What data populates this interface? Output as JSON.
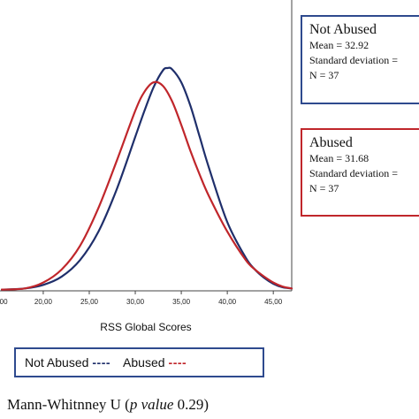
{
  "chart_data": {
    "type": "line",
    "title": "",
    "xlabel": "RSS Global Scores",
    "ylabel": "",
    "xlim": [
      15,
      47
    ],
    "grid": false,
    "x_ticks": [
      "20,00",
      "25,00",
      "30,00",
      "35,00",
      "40,00",
      "45,00"
    ],
    "x_tick_values": [
      20,
      25,
      30,
      35,
      40,
      45
    ],
    "series": [
      {
        "name": "Not Abused",
        "color": "#1f2f6b",
        "x": [
          15.5,
          18,
          20,
          22,
          24,
          26,
          28,
          30,
          31,
          32,
          33,
          33.5,
          34,
          35,
          36,
          37,
          38,
          40,
          42,
          43,
          44,
          45,
          46,
          47
        ],
        "y": [
          0.5,
          1,
          2.5,
          6,
          13,
          25,
          43,
          65,
          76,
          86,
          93,
          94,
          93.5,
          88,
          78,
          65,
          52,
          29,
          14,
          9,
          5.5,
          3,
          1.5,
          1
        ]
      },
      {
        "name": "Abused",
        "color": "#c0262b",
        "x": [
          15.5,
          18,
          20,
          22,
          24,
          26,
          28,
          30,
          31,
          32,
          33,
          34,
          35,
          36,
          37,
          38,
          40,
          42,
          43,
          44,
          45,
          46,
          47
        ],
        "y": [
          0.5,
          1,
          3.5,
          9,
          19,
          35,
          55,
          76,
          84,
          88,
          86.5,
          80,
          70,
          59,
          49,
          40,
          25,
          13,
          9,
          6,
          3.5,
          1.8,
          1
        ]
      }
    ]
  },
  "stats": {
    "not_abused": {
      "title": "Not Abused",
      "mean": "Mean = 32.92",
      "sd": "Standard deviation = ",
      "n": "N = 37",
      "color": "#2e4a8e"
    },
    "abused": {
      "title": "Abused",
      "mean": "Mean = 31.68",
      "sd": "Standard deviation = ",
      "n": "N = 37",
      "color": "#c0262b"
    }
  },
  "legend": {
    "not_abused_label": "Not Abused",
    "not_abused_dash": "----",
    "abused_label": "Abused",
    "abused_dash": "----"
  },
  "footnote": {
    "prefix": "Mann-Whitnney U (",
    "italic": "p value",
    "suffix": " 0.29)"
  }
}
